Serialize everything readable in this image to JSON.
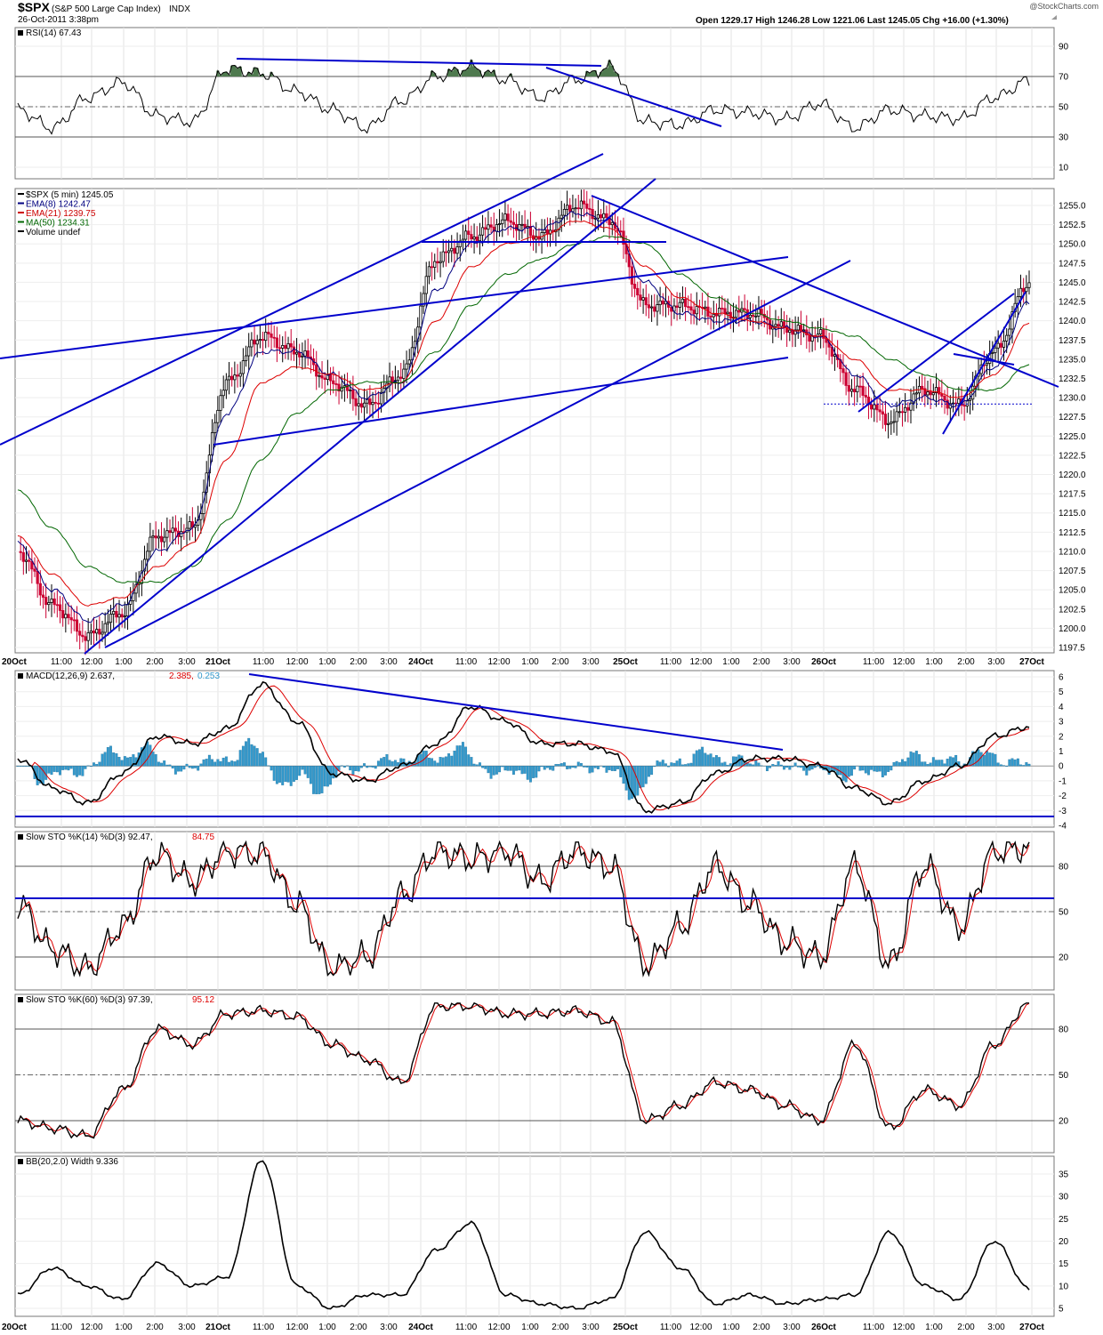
{
  "header": {
    "symbol": "$SPX",
    "description": "(S&P 500 Large Cap Index)",
    "exchange": "INDX",
    "timestamp": "26-Oct-2011 3:38pm",
    "watermark": "@StockCharts.com",
    "ohlc_text": "Open 1229.17  High 1246.28  Low 1221.06  Last 1245.05  Chg +16.00 (+1.30%)"
  },
  "x_axis": {
    "labels_top": [
      "20Oct",
      "11:00",
      "12:00",
      "1:00",
      "2:00",
      "3:00",
      "21Oct",
      "11:00",
      "12:00",
      "1:00",
      "2:00",
      "3:00",
      "24Oct",
      "11:00",
      "12:00",
      "1:00",
      "2:00",
      "3:00",
      "25Oct",
      "11:00",
      "12:00",
      "1:00",
      "2:00",
      "3:00",
      "26Oct",
      "11:00",
      "12:00",
      "1:00",
      "2:00",
      "3:00",
      "27Oct"
    ],
    "labels_bottom": [
      "20Oct",
      "11:00",
      "12:00",
      "1:00",
      "2:00",
      "3:00",
      "21Oct",
      "11:00",
      "12:00",
      "1:00",
      "2:00",
      "3:00",
      "24Oct",
      "11:00",
      "12:00",
      "1:00",
      "2:00",
      "3:00",
      "25Oct",
      "11:00",
      "12:00",
      "1:00",
      "2:00",
      "3:00",
      "26Oct",
      "11:00",
      "12:00",
      "1:00",
      "2:00",
      "3:00",
      "27Oct"
    ],
    "bold": [
      "20Oct",
      "21Oct",
      "24Oct",
      "25Oct",
      "26Oct",
      "27Oct"
    ]
  },
  "panels": {
    "rsi": {
      "label": "RSI(14) 67.43",
      "ticks": [
        "90",
        "70",
        "50",
        "30",
        "10"
      ],
      "tick_values": [
        90,
        70,
        50,
        30,
        10
      ]
    },
    "price": {
      "legend": [
        {
          "text": "$SPX (5 min) 1245.05",
          "color": "#000000"
        },
        {
          "text": "EMA(8) 1242.47",
          "color": "#000080"
        },
        {
          "text": "EMA(21) 1239.75",
          "color": "#cc0000"
        },
        {
          "text": "MA(50) 1234.31",
          "color": "#006600"
        },
        {
          "text": "Volume undef",
          "color": "#000000"
        }
      ],
      "ticks": [
        "1255.0",
        "1252.5",
        "1250.0",
        "1247.5",
        "1245.0",
        "1242.5",
        "1240.0",
        "1237.5",
        "1235.0",
        "1232.5",
        "1230.0",
        "1227.5",
        "1225.0",
        "1222.5",
        "1220.0",
        "1217.5",
        "1215.0",
        "1212.5",
        "1210.0",
        "1207.5",
        "1205.0",
        "1202.5",
        "1200.0",
        "1197.5"
      ]
    },
    "macd": {
      "label_main": "MACD(12,26,9) 2.637,",
      "label_signal": "2.385,",
      "label_hist": "0.253",
      "ticks": [
        "6",
        "5",
        "4",
        "3",
        "2",
        "1",
        "0",
        "-1",
        "-2",
        "-3",
        "-4"
      ]
    },
    "sto14": {
      "label_main": "Slow STO %K(14) %D(3) 92.47,",
      "label_d": "84.75",
      "ticks": [
        "80",
        "50",
        "20"
      ]
    },
    "sto60": {
      "label_main": "Slow STO %K(60) %D(3) 97.39,",
      "label_d": "95.12",
      "ticks": [
        "80",
        "50",
        "20"
      ]
    },
    "bb": {
      "label": "BB(20,2.0) Width 9.336",
      "ticks": [
        "35",
        "30",
        "25",
        "20",
        "15",
        "10",
        "5"
      ]
    }
  },
  "colors": {
    "price_up": "#000000",
    "price_down": "#cc0033",
    "ema8": "#000080",
    "ema21": "#dd0000",
    "ma50": "#006600",
    "trendline": "#0000cc",
    "macd_hist": "#3399cc",
    "rsi_fill": "#4f7a4f"
  },
  "chart_data": [
    {
      "type": "line",
      "title": "$SPX (5 min) 1245.05",
      "series": [
        {
          "name": "$SPX (5 min)",
          "x": [
            "20Oct",
            "11:00",
            "12:00",
            "1:00",
            "2:00",
            "3:00",
            "21Oct",
            "11:00",
            "12:00",
            "1:00",
            "2:00",
            "3:00",
            "24Oct",
            "11:00",
            "12:00",
            "1:00",
            "2:00",
            "3:00",
            "25Oct",
            "11:00",
            "12:00",
            "1:00",
            "2:00",
            "3:00",
            "26Oct",
            "11:00",
            "12:00",
            "1:00",
            "2:00",
            "3:00"
          ],
          "values": [
            1210,
            1203,
            1199,
            1202,
            1212,
            1213,
            1232,
            1238,
            1236,
            1232,
            1229,
            1233,
            1248,
            1251,
            1253,
            1251,
            1255,
            1253,
            1242,
            1242,
            1241,
            1241,
            1239,
            1238,
            1231,
            1227,
            1231,
            1229,
            1236,
            1245
          ]
        },
        {
          "name": "EMA(8)",
          "values": [
            1211,
            1205,
            1201,
            1203,
            1210,
            1213,
            1228,
            1236,
            1236,
            1233,
            1230,
            1232,
            1244,
            1250,
            1252,
            1252,
            1254,
            1253,
            1245,
            1241,
            1240,
            1240,
            1239,
            1238,
            1233,
            1229,
            1230,
            1229,
            1234,
            1242.47
          ]
        },
        {
          "name": "EMA(21)",
          "values": [
            1212,
            1207,
            1203,
            1204,
            1208,
            1211,
            1222,
            1232,
            1234,
            1233,
            1231,
            1232,
            1240,
            1247,
            1250,
            1251,
            1253,
            1252,
            1247,
            1243,
            1241,
            1240,
            1239,
            1238,
            1235,
            1231,
            1231,
            1230,
            1233,
            1239.75
          ]
        },
        {
          "name": "MA(50)",
          "values": [
            1218,
            1213,
            1208,
            1206,
            1206,
            1208,
            1214,
            1222,
            1228,
            1231,
            1232,
            1232,
            1236,
            1242,
            1246,
            1248,
            1250,
            1251,
            1250,
            1246,
            1243,
            1241,
            1240,
            1239,
            1238,
            1235,
            1233,
            1231,
            1231,
            1234.31
          ]
        }
      ],
      "ylim": [
        1196,
        1257.5
      ]
    },
    {
      "type": "line",
      "title": "RSI(14) 67.43",
      "values": [
        48,
        36,
        56,
        66,
        44,
        40,
        75,
        72,
        60,
        48,
        36,
        54,
        70,
        76,
        68,
        56,
        68,
        76,
        40,
        38,
        48,
        46,
        42,
        52,
        36,
        48,
        44,
        42,
        56,
        67.43
      ],
      "ylim": [
        0,
        100
      ]
    },
    {
      "type": "bar",
      "title": "MACD(12,26,9) 2.637, 2.385, 0.253",
      "values": [
        0.5,
        -1.5,
        -2.5,
        -0.5,
        2,
        1.5,
        2.5,
        5.5,
        3,
        -0.5,
        -1,
        0,
        1.5,
        4,
        3,
        1.5,
        1.5,
        1,
        -3,
        -2.5,
        -0.5,
        0.5,
        0.5,
        0,
        -1.5,
        -2.5,
        -1,
        0,
        2,
        2.637
      ],
      "ylim": [
        -4,
        6.5
      ]
    },
    {
      "type": "line",
      "title": "Slow STO %K(14) %D(3) 92.47, 84.75",
      "values": [
        55,
        25,
        12,
        40,
        88,
        70,
        90,
        88,
        55,
        12,
        20,
        60,
        90,
        85,
        90,
        70,
        90,
        80,
        15,
        40,
        80,
        55,
        30,
        20,
        80,
        15,
        80,
        40,
        90,
        92.47
      ],
      "ylim": [
        0,
        100
      ]
    },
    {
      "type": "line",
      "title": "Slow STO %K(60) %D(3) 97.39, 95.12",
      "values": [
        20,
        15,
        10,
        40,
        80,
        70,
        90,
        92,
        88,
        70,
        60,
        45,
        95,
        95,
        90,
        90,
        92,
        85,
        20,
        30,
        45,
        40,
        30,
        20,
        70,
        15,
        40,
        30,
        70,
        97.39
      ],
      "ylim": [
        0,
        100
      ]
    },
    {
      "type": "line",
      "title": "BB(20,2.0) Width 9.336",
      "values": [
        8,
        14,
        10,
        7,
        15,
        10,
        12,
        38,
        10,
        5,
        8,
        8,
        18,
        24,
        8,
        6,
        5,
        7,
        22,
        14,
        6,
        8,
        6,
        7,
        8,
        22,
        10,
        7,
        20,
        9.336
      ],
      "ylim": [
        3,
        37
      ]
    }
  ]
}
